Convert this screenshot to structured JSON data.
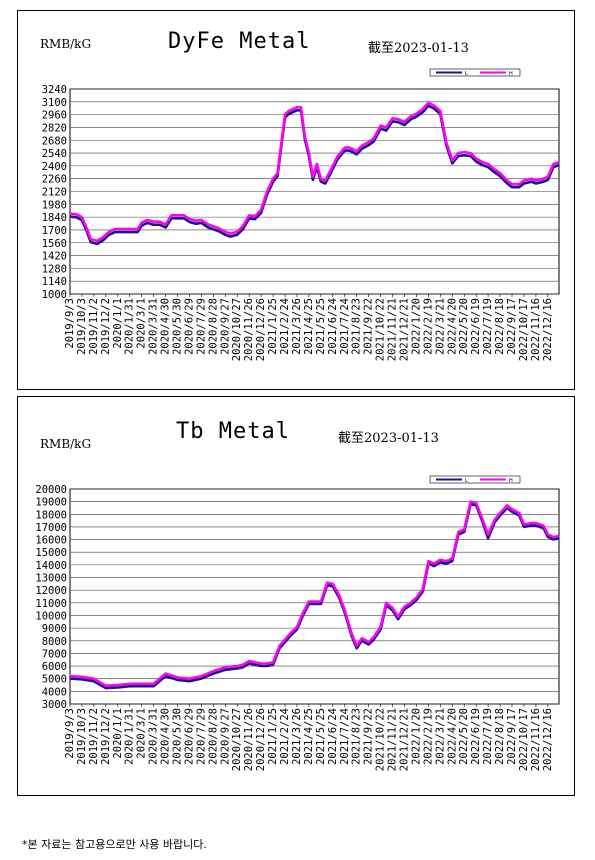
{
  "footnote": "*본 자료는 참고용으로만 사용 바랍니다.",
  "colors": {
    "low": "#1a1a7a",
    "high": "#ff00ff"
  },
  "chart_data": [
    {
      "type": "line",
      "title": "DyFe Metal",
      "unit": "RMB/kG",
      "date_note": "截至2023-01-13",
      "ylim": [
        1000,
        3240
      ],
      "yticks": [
        1000,
        1140,
        1280,
        1420,
        1560,
        1700,
        1840,
        1980,
        2120,
        2260,
        2400,
        2540,
        2680,
        2820,
        2960,
        3100,
        3240
      ],
      "grid": true,
      "legend": {
        "placement": "top-right",
        "entries": [
          "L",
          "H"
        ]
      },
      "x_tick_labels": [
        "2019/9/3",
        "2019/10/3",
        "2019/11/2",
        "2019/12/2",
        "2020/1/1",
        "2020/1/31",
        "2020/3/1",
        "2020/3/31",
        "2020/4/30",
        "2020/5/30",
        "2020/6/29",
        "2020/7/29",
        "2020/8/28",
        "2020/9/27",
        "2020/10/27",
        "2020/11/26",
        "2020/12/26",
        "2021/1/25",
        "2021/2/24",
        "2021/3/26",
        "2021/4/25",
        "2021/5/25",
        "2021/6/24",
        "2021/7/24",
        "2021/8/23",
        "2021/9/22",
        "2021/10/22",
        "2021/11/21",
        "2021/12/21",
        "2022/1/20",
        "2022/2/19",
        "2022/3/21",
        "2022/4/20",
        "2022/5/20",
        "2022/6/19",
        "2022/7/19",
        "2022/8/18",
        "2022/9/17",
        "2022/10/17",
        "2022/11/16",
        "2022/12/16"
      ],
      "x": [
        "2019/9/3",
        "2019/9/20",
        "2019/10/3",
        "2019/10/15",
        "2019/10/25",
        "2019/11/10",
        "2019/11/25",
        "2019/12/10",
        "2019/12/25",
        "2020/1/10",
        "2020/1/31",
        "2020/2/20",
        "2020/3/1",
        "2020/3/15",
        "2020/3/31",
        "2020/4/15",
        "2020/4/30",
        "2020/5/15",
        "2020/5/30",
        "2020/6/15",
        "2020/6/29",
        "2020/7/15",
        "2020/7/29",
        "2020/8/15",
        "2020/8/28",
        "2020/9/10",
        "2020/9/27",
        "2020/10/10",
        "2020/10/27",
        "2020/11/10",
        "2020/11/26",
        "2020/12/10",
        "2020/12/26",
        "2021/1/10",
        "2021/1/25",
        "2021/2/5",
        "2021/2/24",
        "2021/3/5",
        "2021/3/26",
        "2021/4/5",
        "2021/4/15",
        "2021/4/25",
        "2021/5/5",
        "2021/5/15",
        "2021/5/25",
        "2021/6/5",
        "2021/6/24",
        "2021/7/5",
        "2021/7/24",
        "2021/8/5",
        "2021/8/23",
        "2021/9/5",
        "2021/9/22",
        "2021/10/5",
        "2021/10/22",
        "2021/11/5",
        "2021/11/21",
        "2021/12/5",
        "2021/12/21",
        "2022/1/5",
        "2022/1/20",
        "2022/2/5",
        "2022/2/19",
        "2022/3/5",
        "2022/3/21",
        "2022/4/5",
        "2022/4/20",
        "2022/5/5",
        "2022/5/20",
        "2022/6/5",
        "2022/6/19",
        "2022/7/5",
        "2022/7/19",
        "2022/8/5",
        "2022/8/18",
        "2022/9/5",
        "2022/9/17",
        "2022/10/5",
        "2022/10/17",
        "2022/11/5",
        "2022/11/16",
        "2022/12/5",
        "2022/12/16",
        "2022/12/30",
        "2023/1/13"
      ],
      "series": [
        {
          "name": "L",
          "values": [
            1860,
            1850,
            1820,
            1700,
            1580,
            1560,
            1600,
            1660,
            1690,
            1690,
            1690,
            1690,
            1760,
            1790,
            1770,
            1770,
            1740,
            1840,
            1840,
            1840,
            1800,
            1780,
            1790,
            1740,
            1720,
            1700,
            1660,
            1640,
            1660,
            1720,
            1840,
            1830,
            1900,
            2100,
            2240,
            2300,
            2940,
            2980,
            3020,
            3020,
            2700,
            2520,
            2260,
            2400,
            2240,
            2220,
            2380,
            2480,
            2580,
            2580,
            2540,
            2600,
            2640,
            2680,
            2820,
            2800,
            2900,
            2890,
            2860,
            2920,
            2950,
            3000,
            3070,
            3040,
            2980,
            2640,
            2440,
            2520,
            2530,
            2520,
            2460,
            2420,
            2400,
            2340,
            2300,
            2220,
            2180,
            2180,
            2220,
            2240,
            2220,
            2240,
            2260,
            2400,
            2420
          ]
        },
        {
          "name": "H",
          "values": [
            1880,
            1870,
            1840,
            1720,
            1600,
            1580,
            1620,
            1680,
            1710,
            1710,
            1710,
            1710,
            1780,
            1810,
            1790,
            1790,
            1760,
            1860,
            1860,
            1860,
            1820,
            1800,
            1810,
            1760,
            1740,
            1720,
            1680,
            1660,
            1680,
            1740,
            1860,
            1850,
            1920,
            2120,
            2260,
            2320,
            2960,
            3000,
            3040,
            3040,
            2720,
            2540,
            2280,
            2420,
            2260,
            2240,
            2400,
            2500,
            2600,
            2600,
            2560,
            2620,
            2660,
            2700,
            2840,
            2820,
            2920,
            2910,
            2880,
            2940,
            2970,
            3020,
            3090,
            3060,
            3000,
            2660,
            2460,
            2540,
            2550,
            2540,
            2480,
            2440,
            2420,
            2360,
            2320,
            2240,
            2200,
            2200,
            2240,
            2260,
            2240,
            2260,
            2280,
            2420,
            2440
          ]
        }
      ]
    },
    {
      "type": "line",
      "title": "Tb Metal",
      "unit": "RMB/kG",
      "date_note": "截至2023-01-13",
      "ylim": [
        3000,
        20000
      ],
      "yticks": [
        3000,
        4000,
        5000,
        6000,
        7000,
        8000,
        9000,
        10000,
        11000,
        12000,
        13000,
        14000,
        15000,
        16000,
        17000,
        18000,
        19000,
        20000
      ],
      "grid": true,
      "legend": {
        "placement": "top-right",
        "entries": [
          "L",
          "H"
        ]
      },
      "x_tick_labels": [
        "2019/9/3",
        "2019/10/3",
        "2019/11/2",
        "2019/12/2",
        "2020/1/1",
        "2020/1/31",
        "2020/3/1",
        "2020/3/31",
        "2020/4/30",
        "2020/5/30",
        "2020/6/29",
        "2020/7/29",
        "2020/8/28",
        "2020/9/27",
        "2020/10/27",
        "2020/11/26",
        "2020/12/26",
        "2021/1/25",
        "2021/2/24",
        "2021/3/26",
        "2021/4/25",
        "2021/5/25",
        "2021/6/24",
        "2021/7/24",
        "2021/8/23",
        "2021/9/22",
        "2021/10/22",
        "2021/11/21",
        "2021/12/21",
        "2022/1/20",
        "2022/2/19",
        "2022/3/21",
        "2022/4/20",
        "2022/5/20",
        "2022/6/19",
        "2022/7/19",
        "2022/8/18",
        "2022/9/17",
        "2022/10/17",
        "2022/11/16",
        "2022/12/16"
      ],
      "x": [
        "2019/9/3",
        "2019/10/3",
        "2019/11/2",
        "2019/12/2",
        "2020/1/1",
        "2020/1/31",
        "2020/3/1",
        "2020/3/31",
        "2020/4/30",
        "2020/5/30",
        "2020/6/29",
        "2020/7/29",
        "2020/8/28",
        "2020/9/27",
        "2020/10/27",
        "2020/11/10",
        "2020/11/26",
        "2020/12/10",
        "2020/12/26",
        "2021/1/10",
        "2021/1/25",
        "2021/2/10",
        "2021/2/24",
        "2021/3/10",
        "2021/3/26",
        "2021/4/10",
        "2021/4/25",
        "2021/5/10",
        "2021/5/25",
        "2021/6/10",
        "2021/6/24",
        "2021/7/10",
        "2021/7/24",
        "2021/8/10",
        "2021/8/23",
        "2021/9/5",
        "2021/9/22",
        "2021/10/5",
        "2021/10/22",
        "2021/11/5",
        "2021/11/21",
        "2021/12/5",
        "2021/12/21",
        "2022/1/5",
        "2022/1/20",
        "2022/2/5",
        "2022/2/19",
        "2022/3/5",
        "2022/3/21",
        "2022/4/5",
        "2022/4/20",
        "2022/5/5",
        "2022/5/20",
        "2022/6/5",
        "2022/6/19",
        "2022/7/5",
        "2022/7/19",
        "2022/8/5",
        "2022/8/18",
        "2022/9/5",
        "2022/9/17",
        "2022/10/5",
        "2022/10/17",
        "2022/11/5",
        "2022/11/16",
        "2022/12/5",
        "2022/12/16",
        "2022/12/30",
        "2023/1/13"
      ],
      "series": [
        {
          "name": "L",
          "values": [
            5100,
            5050,
            4900,
            4350,
            4400,
            4500,
            4500,
            4500,
            5300,
            5000,
            4900,
            5100,
            5500,
            5800,
            5900,
            6000,
            6300,
            6200,
            6100,
            6100,
            6200,
            7500,
            8000,
            8500,
            9000,
            10100,
            11000,
            11000,
            11000,
            12500,
            12400,
            11500,
            10300,
            8500,
            7500,
            8100,
            7800,
            8200,
            9000,
            10900,
            10500,
            9800,
            10600,
            10900,
            11300,
            12000,
            14200,
            14000,
            14300,
            14200,
            14400,
            16500,
            16700,
            18900,
            18800,
            17500,
            16200,
            17500,
            18000,
            18600,
            18300,
            18000,
            17100,
            17200,
            17200,
            17000,
            16300,
            16100,
            16200
          ]
        },
        {
          "name": "H",
          "values": [
            5200,
            5150,
            5000,
            4450,
            4500,
            4600,
            4600,
            4600,
            5400,
            5100,
            5000,
            5200,
            5600,
            5900,
            6000,
            6100,
            6400,
            6300,
            6200,
            6200,
            6300,
            7600,
            8100,
            8600,
            9100,
            10200,
            11100,
            11100,
            11100,
            12600,
            12500,
            11600,
            10400,
            8600,
            7600,
            8200,
            7900,
            8300,
            9100,
            11000,
            10600,
            9900,
            10700,
            11000,
            11400,
            12100,
            14300,
            14100,
            14400,
            14300,
            14500,
            16600,
            16800,
            19000,
            18900,
            17600,
            16400,
            17600,
            18100,
            18700,
            18400,
            18100,
            17200,
            17300,
            17300,
            17100,
            16400,
            16200,
            16300
          ]
        }
      ]
    }
  ]
}
